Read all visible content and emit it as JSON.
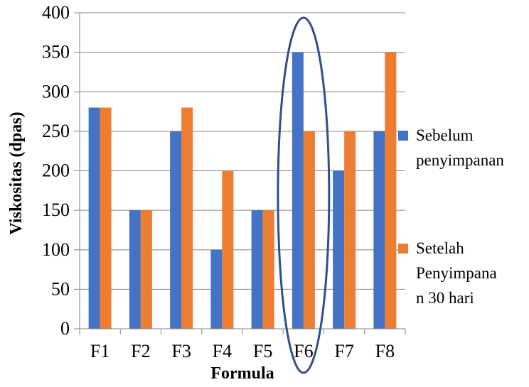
{
  "chart_data": {
    "type": "bar",
    "title": "",
    "xlabel": "Formula",
    "ylabel": "Viskositas (dpas)",
    "categories": [
      "F1",
      "F2",
      "F3",
      "F4",
      "F5",
      "F6",
      "F7",
      "F8"
    ],
    "series": [
      {
        "name": "Sebelum penyimpanan",
        "legend_lines": [
          "Sebelum",
          "penyimpanan"
        ],
        "color": "#4472C4",
        "values": [
          280,
          150,
          250,
          100,
          150,
          350,
          200,
          250
        ]
      },
      {
        "name": "Setelah Penyimpanan 30 hari",
        "legend_lines": [
          "Setelah",
          "Penyimpana",
          "n 30 hari"
        ],
        "color": "#ED7D31",
        "values": [
          280,
          150,
          280,
          200,
          150,
          250,
          250,
          350
        ]
      }
    ],
    "ylim": [
      0,
      400
    ],
    "yticks": [
      0,
      50,
      100,
      150,
      200,
      250,
      300,
      350,
      400
    ],
    "grid": true,
    "legend_position": "right",
    "highlight": {
      "category": "F6",
      "shape": "ellipse",
      "color": "#2F4F8F"
    }
  }
}
